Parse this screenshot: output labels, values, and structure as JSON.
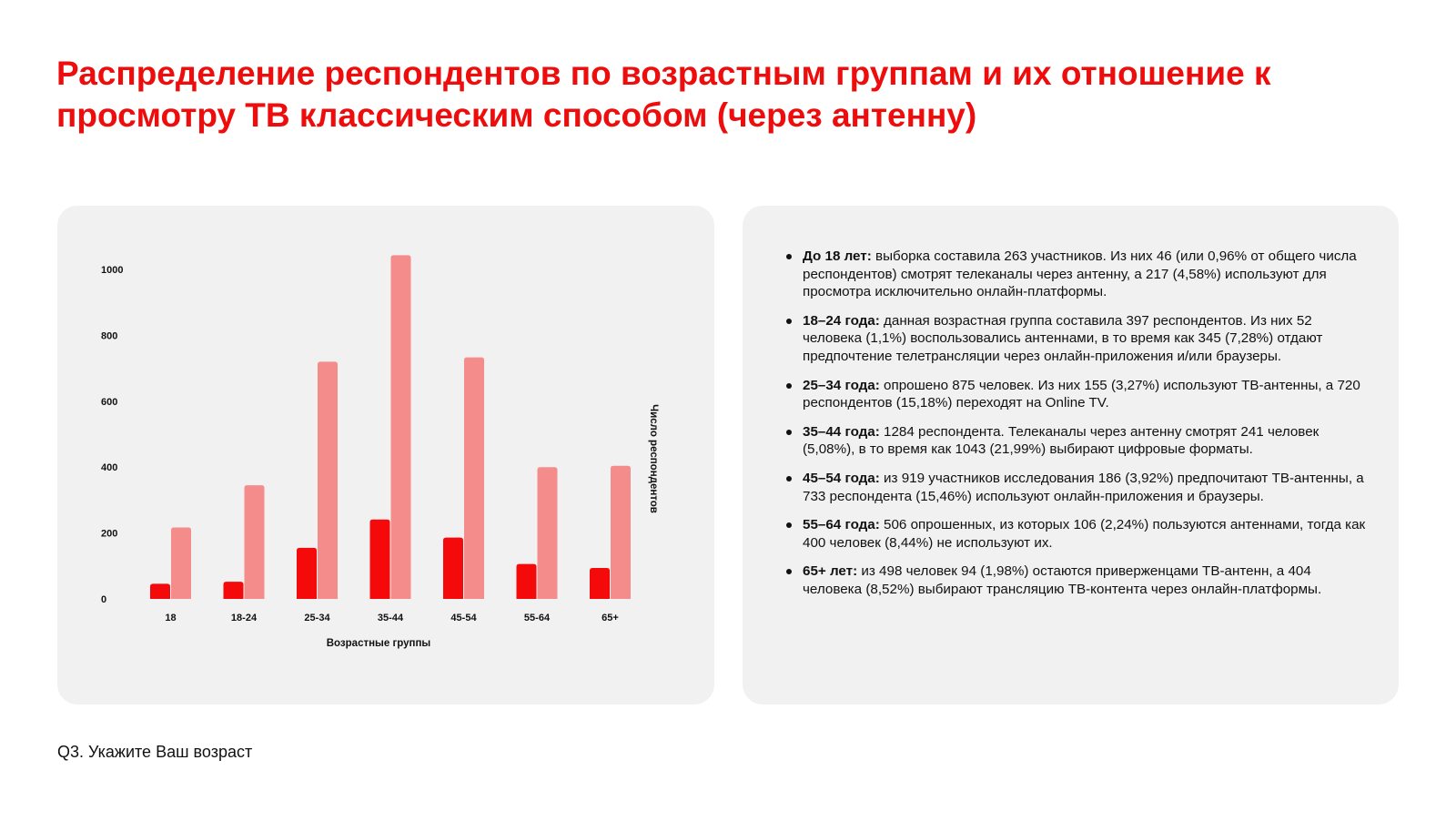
{
  "page": {
    "title": "Распределение респондентов по возрастным группам и их отношение к просмотру ТВ классическим способом (через антенну)",
    "question": "Q3. Укажите Ваш возраст"
  },
  "colors": {
    "title": "#ee0d0d",
    "antenna": "#f40a0a",
    "online": "#f58c8c",
    "card": "#f1f1f1"
  },
  "chart_data": {
    "type": "bar",
    "xlabel": "Возрастные группы",
    "ylabel": "Число респондентов",
    "ylim": [
      0,
      1000
    ],
    "yticks": [
      0,
      200,
      400,
      600,
      800,
      1000
    ],
    "grid": false,
    "legend": "none",
    "categories": [
      "18",
      "18-24",
      "25-34",
      "35-44",
      "45-54",
      "55-64",
      "65+"
    ],
    "series": [
      {
        "values": [
          46,
          52,
          155,
          241,
          186,
          106,
          94
        ]
      },
      {
        "values": [
          217,
          345,
          720,
          1043,
          733,
          400,
          404
        ]
      }
    ]
  },
  "notes": [
    {
      "label": "До 18 лет:",
      "text": " выборка составила 263 участников. Из них 46 (или 0,96% от общего числа респондентов) смотрят телеканалы через антенну, а 217 (4,58%) используют для просмотра исключительно онлайн-платформы."
    },
    {
      "label": "18–24 года:",
      "text": " данная возрастная группа составила 397 респондентов. Из них 52 человека (1,1%) воспользовались антеннами, в то время как 345 (7,28%) отдают предпочтение телетрансляции через онлайн-приложения и/или браузеры."
    },
    {
      "label": "25–34 года:",
      "text": " опрошено 875 человек. Из них 155 (3,27%) используют ТВ-антенны, а 720 респондентов (15,18%) переходят на Online TV."
    },
    {
      "label": "35–44 года:",
      "text": " 1284 респондента. Телеканалы через антенну смотрят 241 человек (5,08%), в то время как 1043 (21,99%) выбирают цифровые форматы."
    },
    {
      "label": "45–54 года:",
      "text": " из 919 участников исследования 186 (3,92%) предпочитают ТВ-антенны, а 733 респондента (15,46%) используют онлайн-приложения и браузеры."
    },
    {
      "label": "55–64 года:",
      "text": " 506 опрошенных, из которых 106 (2,24%) пользуются антеннами, тогда как 400 человек (8,44%) не используют их."
    },
    {
      "label": "65+ лет:",
      "text": " из 498 человек 94 (1,98%) остаются приверженцами ТВ-антенн, а 404 человека (8,52%) выбирают трансляцию ТВ-контента через онлайн-платформы."
    }
  ]
}
